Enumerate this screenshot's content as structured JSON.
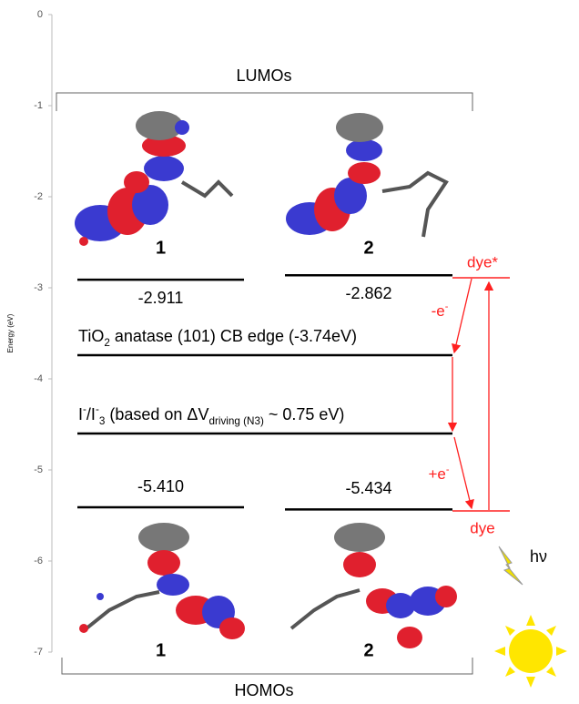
{
  "chart_data": {
    "type": "energy-level",
    "ylabel": "Energy (eV)",
    "ylim": [
      -7,
      0
    ],
    "yticks": [
      0,
      -1,
      -2,
      -3,
      -4,
      -5,
      -6,
      -7
    ],
    "molecules": [
      "1",
      "2"
    ],
    "series": [
      {
        "name": "LUMOs",
        "color": "#000000",
        "values": [
          -2.911,
          -2.862
        ]
      },
      {
        "name": "HOMOs",
        "color": "#000000",
        "values": [
          -5.41,
          -5.434
        ],
        "value_labels": [
          "-5.410",
          "-5.434"
        ]
      }
    ],
    "levels": [
      {
        "value": -3.74,
        "color": "#000000",
        "label_parts": [
          {
            "text": "TiO"
          },
          {
            "text": "2",
            "style": "sub"
          },
          {
            "text": " anatase (101) CB edge (-3.74eV)"
          }
        ]
      },
      {
        "value": -4.6,
        "color": "#000000",
        "label_parts": [
          {
            "text": "I"
          },
          {
            "text": "-",
            "style": "super"
          },
          {
            "text": "/I"
          },
          {
            "text": "-",
            "style": "super"
          },
          {
            "text": "3",
            "style": "sub"
          },
          {
            "text": " (based on ΔV"
          },
          {
            "text": "driving (N3)",
            "style": "sub"
          },
          {
            "text": " ~ 0.75 eV)"
          }
        ]
      }
    ],
    "dye_levels": [
      {
        "name": "dye*",
        "value": -2.89,
        "color": "#ff2020"
      },
      {
        "name": "dye",
        "value": -5.45,
        "color": "#ff2020"
      }
    ],
    "transfers": [
      [
        {
          "text": "-e"
        },
        {
          "text": "-",
          "style": "super"
        }
      ],
      [
        {
          "text": "+e"
        },
        {
          "text": "-",
          "style": "super"
        }
      ]
    ],
    "light": "hν"
  }
}
